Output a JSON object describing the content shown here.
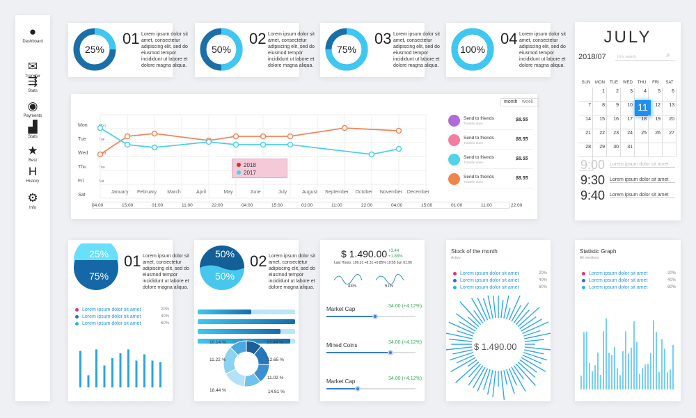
{
  "sidebar": {
    "items": [
      {
        "label": "Dashboard",
        "icon": "user-icon",
        "glyph": "●"
      },
      {
        "label": "Transfer",
        "icon": "envelope-icon",
        "glyph": "✉"
      },
      {
        "label": "Stats",
        "icon": "flow-icon",
        "glyph": "⇶"
      },
      {
        "label": "Payments",
        "icon": "card-icon",
        "glyph": "◉"
      },
      {
        "label": "Stats",
        "icon": "bar-chart-icon",
        "glyph": "▟"
      },
      {
        "label": "Best",
        "icon": "star-icon",
        "glyph": "★"
      },
      {
        "label": "History",
        "icon": "history-icon",
        "glyph": "H"
      },
      {
        "label": "Info",
        "icon": "gear-icon",
        "glyph": "⚙"
      }
    ]
  },
  "kpis": [
    {
      "value": "25%",
      "fraction": 0.25,
      "num": "01",
      "text": "Lorem ipsum dolor sit amet, consectetur adipiscing elit, sed do eiusmod tempor incididunt ut labore et dolore magna aliqua."
    },
    {
      "value": "50%",
      "fraction": 0.5,
      "num": "02",
      "text": "Lorem ipsum dolor sit amet, consectetur adipiscing elit, sed do eiusmod tempor incididunt ut labore et dolore magna aliqua."
    },
    {
      "value": "75%",
      "fraction": 0.75,
      "num": "03",
      "text": "Lorem ipsum dolor sit amet, consectetur adipiscing elit, sed do eiusmod tempor incididunt ut labore et dolore magna aliqua."
    },
    {
      "value": "100%",
      "fraction": 1.0,
      "num": "04",
      "text": "Lorem ipsum dolor sit amet, consectetur adipiscing elit, sed do eiusmod tempor incididunt ut labore et dolore magna aliqua."
    }
  ],
  "calendar": {
    "month": "JULY",
    "period": "2018/07",
    "search_placeholder": "Ut in search",
    "days": [
      "SUN",
      "MON",
      "TUE",
      "WED",
      "THU",
      "FRI",
      "SAT"
    ],
    "dates": [
      "",
      "1",
      "2",
      "3",
      "4",
      "5",
      "6",
      "7",
      "8",
      "9",
      "10",
      "11",
      "12",
      "13",
      "14",
      "15",
      "16",
      "17",
      "18",
      "19",
      "20",
      "21",
      "22",
      "23",
      "24",
      "25",
      "26",
      "27",
      "28",
      "29",
      "30",
      "31",
      "",
      "",
      "",
      ""
    ],
    "selected": "11",
    "times": [
      {
        "time": "9:00",
        "note": "Lorem ipsum dolor sit amet"
      },
      {
        "time": "9:30",
        "note": "Lorem ipsum dolor sit amet"
      },
      {
        "time": "9:40",
        "note": "Lorem ipsum dolor sit amet"
      }
    ]
  },
  "linechart": {
    "toggle": [
      "month",
      "week"
    ],
    "active_toggle": "month",
    "legend": [
      {
        "label": "2018",
        "color": "#c0392b"
      },
      {
        "label": "2017",
        "color": "#3dd6f0"
      }
    ],
    "transactions": [
      {
        "title": "Send to friends",
        "sub": "Transfer done",
        "amount": "$8.55",
        "color": "#b06bd8"
      },
      {
        "title": "Send to friends",
        "sub": "Transfer done",
        "amount": "$8.55",
        "color": "#f27da0"
      },
      {
        "title": "Send to friends",
        "sub": "Transfer done",
        "amount": "$8.55",
        "color": "#4fd4e8"
      },
      {
        "title": "Send to friends",
        "sub": "Transfer done",
        "amount": "$8.55",
        "color": "#f0844c"
      }
    ],
    "times": [
      "04:00",
      "15:00",
      "01:00",
      "11:00",
      "22:00",
      "04:00",
      "15:00",
      "01:00",
      "11:00",
      "22:00",
      "04:00",
      "15:00",
      "01:00",
      "11:00",
      "22:00"
    ]
  },
  "chart_data": [
    {
      "type": "line",
      "categories": [
        "January",
        "February",
        "March",
        "April",
        "May",
        "June",
        "July",
        "August",
        "September",
        "October",
        "November",
        "December"
      ],
      "y_categories": [
        "Mon",
        "Tue",
        "Wed",
        "Thu",
        "Fri",
        "Sat"
      ],
      "y_inner": [
        "Mon",
        "Tue",
        "Wed",
        "Thu",
        "Sat"
      ],
      "series": [
        {
          "name": "2018",
          "color": "#f2855a",
          "values": [
            3.1,
            1.8,
            1.6,
            null,
            2.1,
            1.8,
            1.8,
            1.8,
            null,
            1.2,
            null,
            1.4
          ]
        },
        {
          "name": "2017",
          "color": "#4bd0ea",
          "values": [
            1.2,
            2.4,
            2.6,
            null,
            2.2,
            2.4,
            2.4,
            2.4,
            null,
            null,
            3.1,
            2.7
          ]
        }
      ],
      "grid": true
    },
    {
      "type": "bar",
      "values": [
        0.75,
        0.25,
        0.78,
        0.45,
        0.6,
        0.7,
        0.78,
        0.55,
        0.68,
        0.55,
        0.52
      ],
      "ylim": [
        0,
        1
      ]
    }
  ],
  "bottom": {
    "card1": {
      "top_pct": "25%",
      "bottom_pct": "75%",
      "num": "01",
      "text": "Lorem ipsum dolor sit amet, consectetur adipiscing elit, sed do eiusmod tempor incididunt ut labore et dolore magna aliqua.",
      "rows": [
        {
          "label": "Lorem ipsum dolor sit amet",
          "pct": "20%",
          "color": "#e8336c"
        },
        {
          "label": "Lorem ipsum dolor sit amet",
          "pct": "40%",
          "color": "#2a6bd1"
        },
        {
          "label": "Lorem ipsum dolor sit amet",
          "pct": "60%",
          "color": "#27b1e8"
        }
      ]
    },
    "card2": {
      "top_pct": "50%",
      "bottom_pct": "50%",
      "num": "02",
      "text": "Lorem ipsum dolor sit amet, consectetur adipiscing elit, sed do eiusmod tempor incididunt ut labore et dolore magna aliqua.",
      "bars": [
        0.55,
        1.0,
        0.85,
        0.95
      ],
      "donut": [
        {
          "v": 10.14,
          "label": "10.14 %"
        },
        {
          "v": 13.44,
          "label": "13.44 %"
        },
        {
          "v": 12.65,
          "label": "12.65 %"
        },
        {
          "v": 11.02,
          "label": "11.02 %"
        },
        {
          "v": 14.81,
          "label": "14.81 %"
        },
        {
          "v": 18.44,
          "label": "18.44 %"
        },
        {
          "v": 11.22,
          "label": "11.22 %"
        }
      ]
    },
    "card3": {
      "price": "$ 1.490.00",
      "change": "+3.44",
      "change_pct": "+1.88%",
      "last_hours": "Last Hours: 199.31 +8.31 +0.85%",
      "time": "19:55 Jun 01.06",
      "spark1_pct": "43%",
      "spark2_pct": "51%",
      "sliders": [
        {
          "label": "Market Cap",
          "value": "34.00 (+4.12%)",
          "fraction": 0.55
        },
        {
          "label": "Mined Coins",
          "value": "34.00 (+4.12%)",
          "fraction": 0.72
        },
        {
          "label": "Market Cap",
          "value": "34.00 (+4.12%)",
          "fraction": 0.35
        }
      ]
    },
    "card4": {
      "title": "Stock of the month",
      "sub": "Active",
      "value": "$ 1.490.00",
      "rows": [
        {
          "label": "Lorem ipsum dolor sit amet",
          "pct": "20%",
          "color": "#e8336c"
        },
        {
          "label": "Lorem ipsum dolor sit amet",
          "pct": "40%",
          "color": "#2a6bd1"
        },
        {
          "label": "Lorem ipsum dolor sit amet",
          "pct": "60%",
          "color": "#27b1e8"
        }
      ]
    },
    "card5": {
      "title": "Statistic Graph",
      "sub": "All mentions",
      "rows": [
        {
          "label": "Lorem ipsum dolor sit amet",
          "pct": "20%",
          "color": "#e8336c"
        },
        {
          "label": "Lorem ipsum dolor sit amet",
          "pct": "40%",
          "color": "#2a6bd1"
        },
        {
          "label": "Lorem ipsum dolor sit amet",
          "pct": "60%",
          "color": "#27b1e8"
        }
      ]
    }
  }
}
